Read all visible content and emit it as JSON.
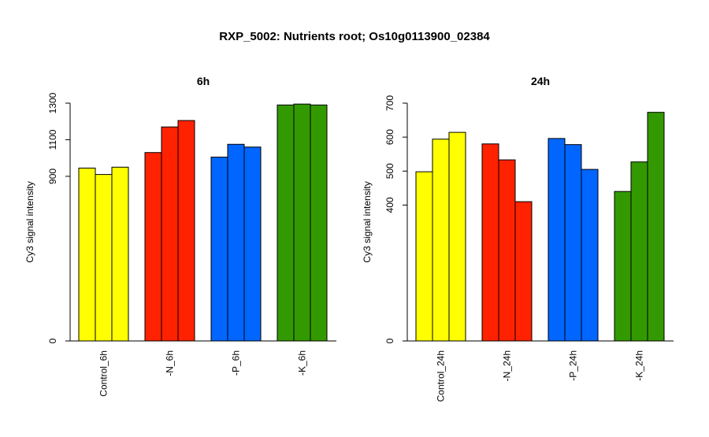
{
  "title": "RXP_5002: Nutrients root; Os10g0113900_02384",
  "chart_data": [
    {
      "type": "bar",
      "title": "6h",
      "ylabel": "Cy3 signal intensity",
      "ylim": [
        0,
        1300
      ],
      "yticks": [
        0,
        900,
        1100,
        1300
      ],
      "groups": [
        {
          "label": "Control_6h",
          "color": "#ffff00",
          "values": [
            945,
            910,
            950
          ]
        },
        {
          "label": "-N_6h",
          "color": "#ff2200",
          "values": [
            1030,
            1170,
            1205
          ]
        },
        {
          "label": "-P_6h",
          "color": "#0066ff",
          "values": [
            1005,
            1075,
            1060
          ]
        },
        {
          "label": "-K_6h",
          "color": "#339900",
          "values": [
            1290,
            1295,
            1290
          ]
        }
      ]
    },
    {
      "type": "bar",
      "title": "24h",
      "ylabel": "Cy3 signal intensity",
      "ylim": [
        0,
        700
      ],
      "yticks": [
        0,
        400,
        500,
        600,
        700
      ],
      "groups": [
        {
          "label": "Control_24h",
          "color": "#ffff00",
          "values": [
            498,
            594,
            614
          ]
        },
        {
          "label": "-N_24h",
          "color": "#ff2200",
          "values": [
            580,
            533,
            410
          ]
        },
        {
          "label": "-P_24h",
          "color": "#0066ff",
          "values": [
            596,
            578,
            505
          ]
        },
        {
          "label": "-K_24h",
          "color": "#339900",
          "values": [
            440,
            527,
            673
          ]
        }
      ]
    }
  ]
}
